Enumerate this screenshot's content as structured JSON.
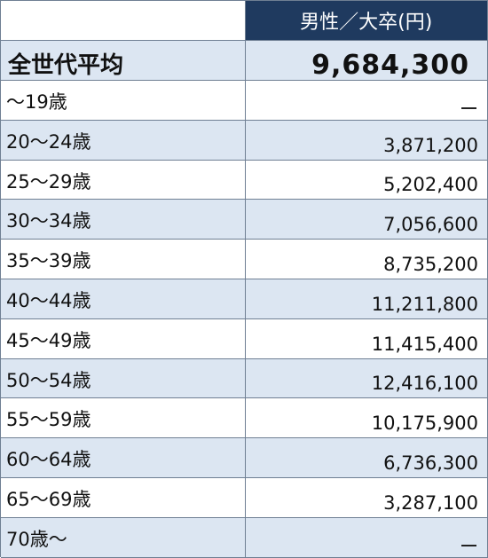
{
  "header": {
    "column_label": "男性／大卒(円)"
  },
  "total": {
    "label": "全世代平均",
    "value": "9,684,300"
  },
  "rows": [
    {
      "age": "～19歳",
      "amount": "—"
    },
    {
      "age": "20～24歳",
      "amount": "3,871,200"
    },
    {
      "age": "25～29歳",
      "amount": "5,202,400"
    },
    {
      "age": "30～34歳",
      "amount": "7,056,600"
    },
    {
      "age": "35～39歳",
      "amount": "8,735,200"
    },
    {
      "age": "40～44歳",
      "amount": "11,211,800"
    },
    {
      "age": "45～49歳",
      "amount": "11,415,400"
    },
    {
      "age": "50～54歳",
      "amount": "12,416,100"
    },
    {
      "age": "55～59歳",
      "amount": "10,175,900"
    },
    {
      "age": "60～64歳",
      "amount": "6,736,300"
    },
    {
      "age": "65～69歳",
      "amount": "3,287,100"
    },
    {
      "age": "70歳～",
      "amount": "—"
    }
  ],
  "colors": {
    "header_bg": "#1f3a5f",
    "stripe_bg": "#dce6f2",
    "border": "#6f7f93"
  }
}
